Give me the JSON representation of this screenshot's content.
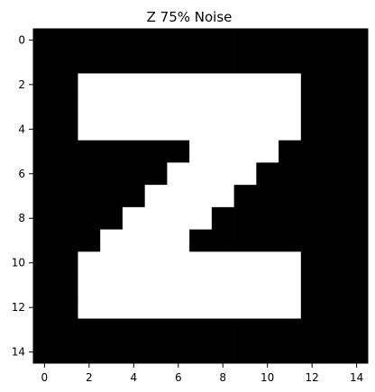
{
  "chart_data": {
    "type": "heatmap",
    "title": "Z 75% Noise",
    "xlabel": "",
    "ylabel": "",
    "colormap": "gray",
    "value_colors": {
      "0": "#000000",
      "1": "#ffffff"
    },
    "x_ticks": [
      0,
      2,
      4,
      6,
      8,
      10,
      12,
      14
    ],
    "y_ticks": [
      0,
      2,
      4,
      6,
      8,
      10,
      12,
      14
    ],
    "xlim": [
      -0.5,
      14.5
    ],
    "ylim": [
      14.5,
      -0.5
    ],
    "grid": false,
    "matrix": [
      [
        0,
        0,
        0,
        0,
        0,
        0,
        0,
        0,
        0,
        0,
        0,
        0,
        0,
        0,
        0
      ],
      [
        0,
        0,
        0,
        0,
        0,
        0,
        0,
        0,
        0,
        0,
        0,
        0,
        0,
        0,
        0
      ],
      [
        0,
        0,
        1,
        1,
        1,
        1,
        1,
        1,
        1,
        1,
        1,
        1,
        0,
        0,
        0
      ],
      [
        0,
        0,
        1,
        1,
        1,
        1,
        1,
        1,
        1,
        1,
        1,
        1,
        0,
        0,
        0
      ],
      [
        0,
        0,
        1,
        1,
        1,
        1,
        1,
        1,
        1,
        1,
        1,
        1,
        0,
        0,
        0
      ],
      [
        0,
        0,
        0,
        0,
        0,
        0,
        0,
        1,
        1,
        1,
        1,
        0,
        0,
        0,
        0
      ],
      [
        0,
        0,
        0,
        0,
        0,
        0,
        1,
        1,
        1,
        1,
        0,
        0,
        0,
        0,
        0
      ],
      [
        0,
        0,
        0,
        0,
        0,
        1,
        1,
        1,
        1,
        0,
        0,
        0,
        0,
        0,
        0
      ],
      [
        0,
        0,
        0,
        0,
        1,
        1,
        1,
        1,
        0,
        0,
        0,
        0,
        0,
        0,
        0
      ],
      [
        0,
        0,
        0,
        1,
        1,
        1,
        1,
        0,
        0,
        0,
        0,
        0,
        0,
        0,
        0
      ],
      [
        0,
        0,
        1,
        1,
        1,
        1,
        1,
        1,
        1,
        1,
        1,
        1,
        0,
        0,
        0
      ],
      [
        0,
        0,
        1,
        1,
        1,
        1,
        1,
        1,
        1,
        1,
        1,
        1,
        0,
        0,
        0
      ],
      [
        0,
        0,
        1,
        1,
        1,
        1,
        1,
        1,
        1,
        1,
        1,
        1,
        0,
        0,
        0
      ],
      [
        0,
        0,
        0,
        0,
        0,
        0,
        0,
        0,
        0,
        0,
        0,
        0,
        0,
        0,
        0
      ],
      [
        0,
        0,
        0,
        0,
        0,
        0,
        0,
        0,
        0,
        0,
        0,
        0,
        0,
        0,
        0
      ]
    ]
  }
}
